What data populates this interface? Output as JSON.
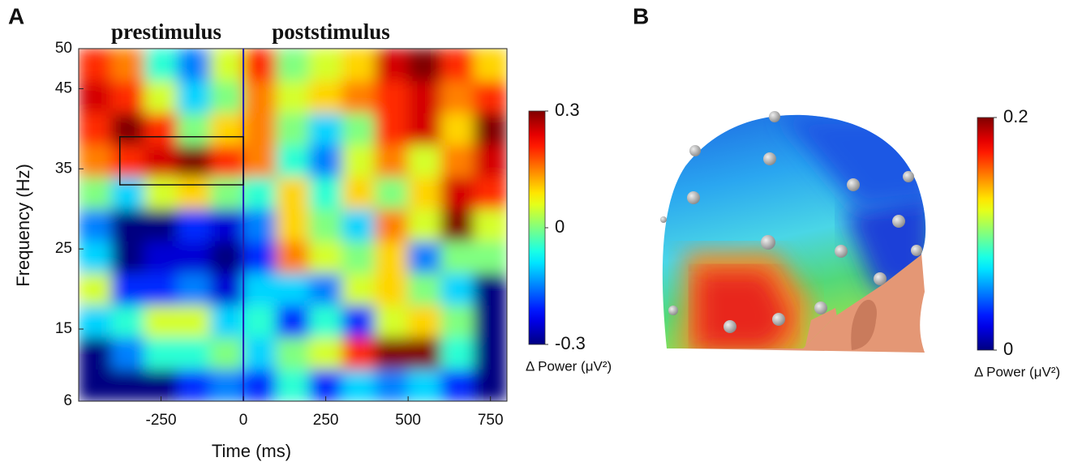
{
  "chart_data": [
    {
      "type": "heatmap",
      "label": "A",
      "annotations": [
        "prestimulus",
        "poststimulus"
      ],
      "xlabel": "Time (ms)",
      "ylabel": "Frequency (Hz)",
      "x": [
        -450,
        -350,
        -250,
        -150,
        -50,
        50,
        150,
        250,
        350,
        450,
        550,
        650,
        750
      ],
      "y": [
        8,
        12,
        16,
        20,
        24,
        28,
        32,
        36,
        40,
        44,
        48
      ],
      "z": [
        [
          -0.3,
          -0.3,
          -0.3,
          -0.2,
          -0.15,
          -0.2,
          -0.05,
          -0.2,
          -0.1,
          -0.15,
          -0.1,
          -0.2,
          -0.3
        ],
        [
          -0.3,
          -0.15,
          -0.05,
          -0.05,
          0.0,
          -0.1,
          0.0,
          0.05,
          0.2,
          0.3,
          0.3,
          -0.05,
          -0.3
        ],
        [
          -0.1,
          -0.05,
          0.05,
          0.05,
          -0.1,
          -0.05,
          -0.2,
          -0.05,
          -0.2,
          0.05,
          0.1,
          0.0,
          -0.3
        ],
        [
          0.05,
          -0.2,
          -0.2,
          -0.15,
          -0.25,
          -0.1,
          -0.1,
          -0.15,
          0.05,
          0.1,
          0.0,
          -0.1,
          -0.3
        ],
        [
          -0.1,
          -0.3,
          -0.25,
          -0.25,
          -0.3,
          -0.2,
          0.15,
          0.05,
          0.0,
          0.1,
          -0.15,
          0.0,
          0.0
        ],
        [
          -0.15,
          -0.3,
          -0.3,
          -0.2,
          -0.25,
          -0.15,
          0.1,
          0.0,
          -0.1,
          0.15,
          0.05,
          0.3,
          0.05
        ],
        [
          0.0,
          -0.1,
          0.05,
          0.1,
          0.0,
          -0.05,
          0.1,
          -0.05,
          0.1,
          0.0,
          0.1,
          0.25,
          0.2
        ],
        [
          0.15,
          0.2,
          0.25,
          0.3,
          0.2,
          0.15,
          -0.05,
          -0.15,
          0.05,
          0.15,
          0.05,
          0.15,
          0.25
        ],
        [
          0.2,
          0.3,
          0.2,
          0.0,
          0.1,
          0.15,
          0.0,
          -0.1,
          0.0,
          0.2,
          0.25,
          0.1,
          0.3
        ],
        [
          0.25,
          0.2,
          0.05,
          -0.1,
          0.0,
          0.15,
          0.05,
          0.1,
          0.15,
          0.2,
          0.25,
          0.15,
          0.2
        ],
        [
          0.2,
          0.15,
          -0.05,
          -0.15,
          0.05,
          0.2,
          0.0,
          0.05,
          0.1,
          0.25,
          0.3,
          0.2,
          0.1
        ]
      ],
      "xlim": [
        -500,
        800
      ],
      "ylim": [
        6,
        50
      ],
      "xticks": [
        -250,
        0,
        250,
        500,
        750
      ],
      "yticks": [
        6,
        15,
        25,
        35,
        45,
        50
      ],
      "event_x": 0,
      "event_color": "#1f1fb0",
      "roi": {
        "xlim": [
          -375,
          0
        ],
        "ylim": [
          33,
          39
        ]
      },
      "colorbar": {
        "label": "Δ Power (μV²)",
        "clim": [
          -0.3,
          0.3
        ],
        "ticks": [
          -0.3,
          0,
          0.3
        ]
      }
    },
    {
      "type": "topomap",
      "label": "B",
      "colorbar": {
        "label": "Δ Power (μV²)",
        "clim": [
          0,
          0.2
        ],
        "ticks": [
          0,
          0.2
        ]
      }
    }
  ]
}
